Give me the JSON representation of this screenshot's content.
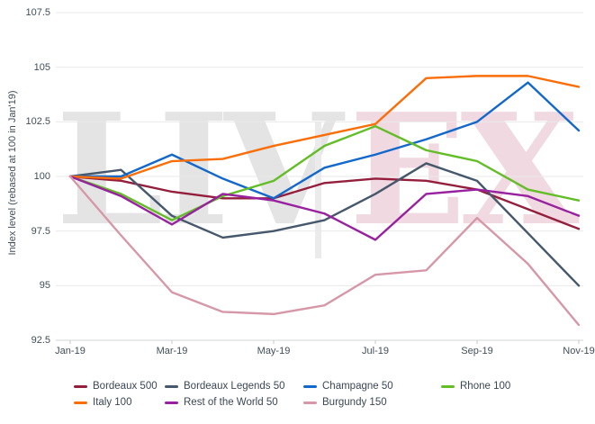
{
  "watermark": {
    "left": "LIV",
    "right": "EX"
  },
  "chart_data": {
    "type": "line",
    "title": "",
    "xlabel": "",
    "ylabel": "Index level (rebased at 100 in Jan'19)",
    "x_categories": [
      "Jan-19",
      "Feb-19",
      "Mar-19",
      "Apr-19",
      "May-19",
      "Jun-19",
      "Jul-19",
      "Aug-19",
      "Sep-19",
      "Oct-19",
      "Nov-19"
    ],
    "x_tick_labels": [
      "Jan-19",
      "Mar-19",
      "May-19",
      "Jul-19",
      "Sep-19",
      "Nov-19"
    ],
    "y_ticks": [
      "92.5",
      "95",
      "97.5",
      "100",
      "102.5",
      "105",
      "107.5"
    ],
    "ylim": [
      92.5,
      107.5
    ],
    "grid": "horizontal",
    "legend_position": "bottom",
    "series": [
      {
        "name": "Bordeaux 500",
        "color": "#941f3d",
        "values": [
          100,
          99.8,
          99.3,
          99.0,
          99.0,
          99.7,
          99.9,
          99.8,
          99.4,
          98.5,
          97.6
        ]
      },
      {
        "name": "Bordeaux Legends 50",
        "color": "#46586b",
        "values": [
          100,
          100.3,
          98.2,
          97.2,
          97.5,
          98.0,
          99.2,
          100.6,
          99.8,
          97.4,
          95.0
        ]
      },
      {
        "name": "Champagne 50",
        "color": "#1268cb",
        "values": [
          100,
          100.0,
          101.0,
          99.9,
          99.0,
          100.4,
          101.0,
          101.7,
          102.5,
          104.3,
          102.1
        ]
      },
      {
        "name": "Rhone 100",
        "color": "#62bd27",
        "values": [
          100,
          99.2,
          98.0,
          99.1,
          99.8,
          101.4,
          102.3,
          101.2,
          100.7,
          99.4,
          98.9
        ]
      },
      {
        "name": "Italy 100",
        "color": "#fa6e0a",
        "values": [
          100,
          99.9,
          100.7,
          100.8,
          101.4,
          101.9,
          102.4,
          104.5,
          104.6,
          104.6,
          104.1
        ]
      },
      {
        "name": "Rest of the World 50",
        "color": "#98219f",
        "values": [
          100,
          99.1,
          97.8,
          99.2,
          98.9,
          98.3,
          97.1,
          99.2,
          99.4,
          99.1,
          98.2
        ]
      },
      {
        "name": "Burgundy 150",
        "color": "#d698a8",
        "values": [
          100,
          97.3,
          94.7,
          93.8,
          93.7,
          94.1,
          95.5,
          95.7,
          98.1,
          96.0,
          93.2
        ]
      }
    ],
    "legend_rows": [
      [
        "Bordeaux 500",
        "Bordeaux Legends 50",
        "Champagne 50",
        "Rhone 100"
      ],
      [
        "Italy 100",
        "Rest of the World 50",
        "Burgundy 150"
      ]
    ]
  }
}
